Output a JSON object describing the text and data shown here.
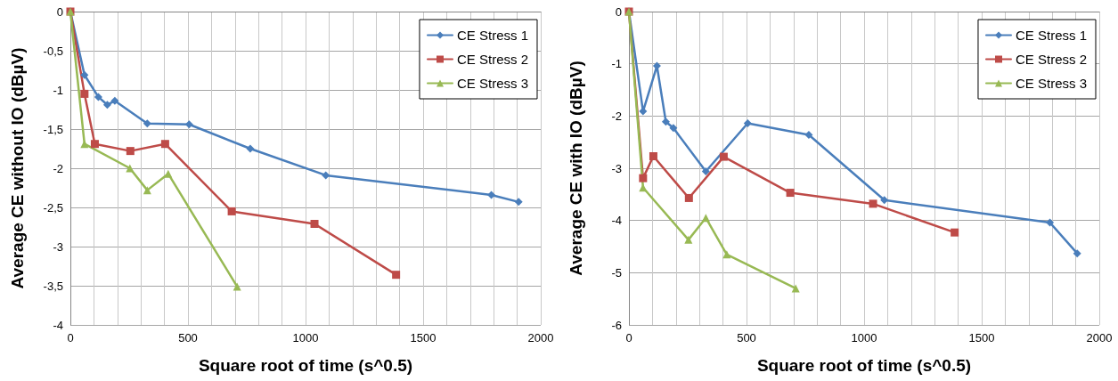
{
  "chart_data": [
    {
      "type": "line",
      "xlabel": "Square root of time (s^0.5)",
      "ylabel": "Average CE without IO (dBµV)",
      "xlim": [
        0,
        2000
      ],
      "ylim": [
        -4,
        0
      ],
      "xticks": [
        0,
        {
          "value": 100,
          "label": null
        },
        {
          "value": 200,
          "label": null
        },
        {
          "value": 300,
          "label": null
        },
        {
          "value": 400,
          "label": null
        },
        500,
        {
          "value": 600,
          "label": null
        },
        {
          "value": 700,
          "label": null
        },
        {
          "value": 800,
          "label": null
        },
        {
          "value": 900,
          "label": null
        },
        1000,
        {
          "value": 1100,
          "label": null
        },
        {
          "value": 1200,
          "label": null
        },
        {
          "value": 1300,
          "label": null
        },
        {
          "value": 1400,
          "label": null
        },
        1500,
        {
          "value": 1600,
          "label": null
        },
        {
          "value": 1700,
          "label": null
        },
        {
          "value": 1800,
          "label": null
        },
        {
          "value": 1900,
          "label": null
        },
        2000
      ],
      "yticks": [
        {
          "value": -4,
          "label": "-4"
        },
        {
          "value": -3.5,
          "label": "-3,5"
        },
        {
          "value": -3,
          "label": "-3"
        },
        {
          "value": -2.5,
          "label": "-2,5"
        },
        {
          "value": -2,
          "label": "-2"
        },
        {
          "value": -1.5,
          "label": "-1,5"
        },
        {
          "value": -1,
          "label": "-1"
        },
        {
          "value": -0.5,
          "label": "-0,5"
        },
        {
          "value": 0,
          "label": "0"
        }
      ],
      "grid": true,
      "legend": "top right",
      "line_style": "solid",
      "series": [
        {
          "name": "CE Stress 1",
          "color": "#4a7ebb",
          "marker": "diamond",
          "x": [
            0,
            60,
            119,
            157,
            189,
            327,
            505,
            765,
            1086,
            1790,
            1906
          ],
          "values": [
            0,
            -0.81,
            -1.09,
            -1.19,
            -1.14,
            -1.43,
            -1.44,
            -1.75,
            -2.09,
            -2.34,
            -2.43
          ]
        },
        {
          "name": "CE Stress 2",
          "color": "#be4b48",
          "marker": "square",
          "x": [
            0,
            60,
            104,
            255,
            403,
            686,
            1038,
            1385
          ],
          "values": [
            0,
            -1.05,
            -1.69,
            -1.78,
            -1.69,
            -2.55,
            -2.71,
            -3.36
          ]
        },
        {
          "name": "CE Stress 3",
          "color": "#98b954",
          "marker": "triangle",
          "x": [
            0,
            60,
            253,
            327,
            416,
            709
          ],
          "values": [
            0,
            -1.69,
            -2.0,
            -2.28,
            -2.07,
            -3.51
          ]
        }
      ]
    },
    {
      "type": "line",
      "xlabel": "Square root of time (s^0.5)",
      "ylabel": "Average CE with IO (dBµV)",
      "xlim": [
        0,
        2000
      ],
      "ylim": [
        -6,
        0
      ],
      "xticks": [
        0,
        {
          "value": 100,
          "label": null
        },
        {
          "value": 200,
          "label": null
        },
        {
          "value": 300,
          "label": null
        },
        {
          "value": 400,
          "label": null
        },
        500,
        {
          "value": 600,
          "label": null
        },
        {
          "value": 700,
          "label": null
        },
        {
          "value": 800,
          "label": null
        },
        {
          "value": 900,
          "label": null
        },
        1000,
        {
          "value": 1100,
          "label": null
        },
        {
          "value": 1200,
          "label": null
        },
        {
          "value": 1300,
          "label": null
        },
        {
          "value": 1400,
          "label": null
        },
        1500,
        {
          "value": 1600,
          "label": null
        },
        {
          "value": 1700,
          "label": null
        },
        {
          "value": 1800,
          "label": null
        },
        {
          "value": 1900,
          "label": null
        },
        2000
      ],
      "yticks": [
        -6,
        -5,
        -4,
        -3,
        -2,
        -1,
        0
      ],
      "grid": true,
      "legend": "top right",
      "line_style": "solid",
      "series": [
        {
          "name": "CE Stress 1",
          "color": "#4a7ebb",
          "marker": "diamond",
          "x": [
            0,
            60,
            119,
            157,
            189,
            327,
            505,
            765,
            1086,
            1790,
            1906
          ],
          "values": [
            0,
            -1.91,
            -1.04,
            -2.11,
            -2.23,
            -3.06,
            -2.14,
            -2.36,
            -3.61,
            -4.04,
            -4.63
          ]
        },
        {
          "name": "CE Stress 2",
          "color": "#be4b48",
          "marker": "square",
          "x": [
            0,
            60,
            104,
            255,
            403,
            686,
            1038,
            1385
          ],
          "values": [
            0,
            -3.19,
            -2.77,
            -3.57,
            -2.78,
            -3.47,
            -3.68,
            -4.23
          ]
        },
        {
          "name": "CE Stress 3",
          "color": "#98b954",
          "marker": "triangle",
          "x": [
            0,
            60,
            253,
            327,
            416,
            709
          ],
          "values": [
            0,
            -3.37,
            -4.37,
            -3.95,
            -4.65,
            -5.3
          ]
        }
      ]
    }
  ]
}
